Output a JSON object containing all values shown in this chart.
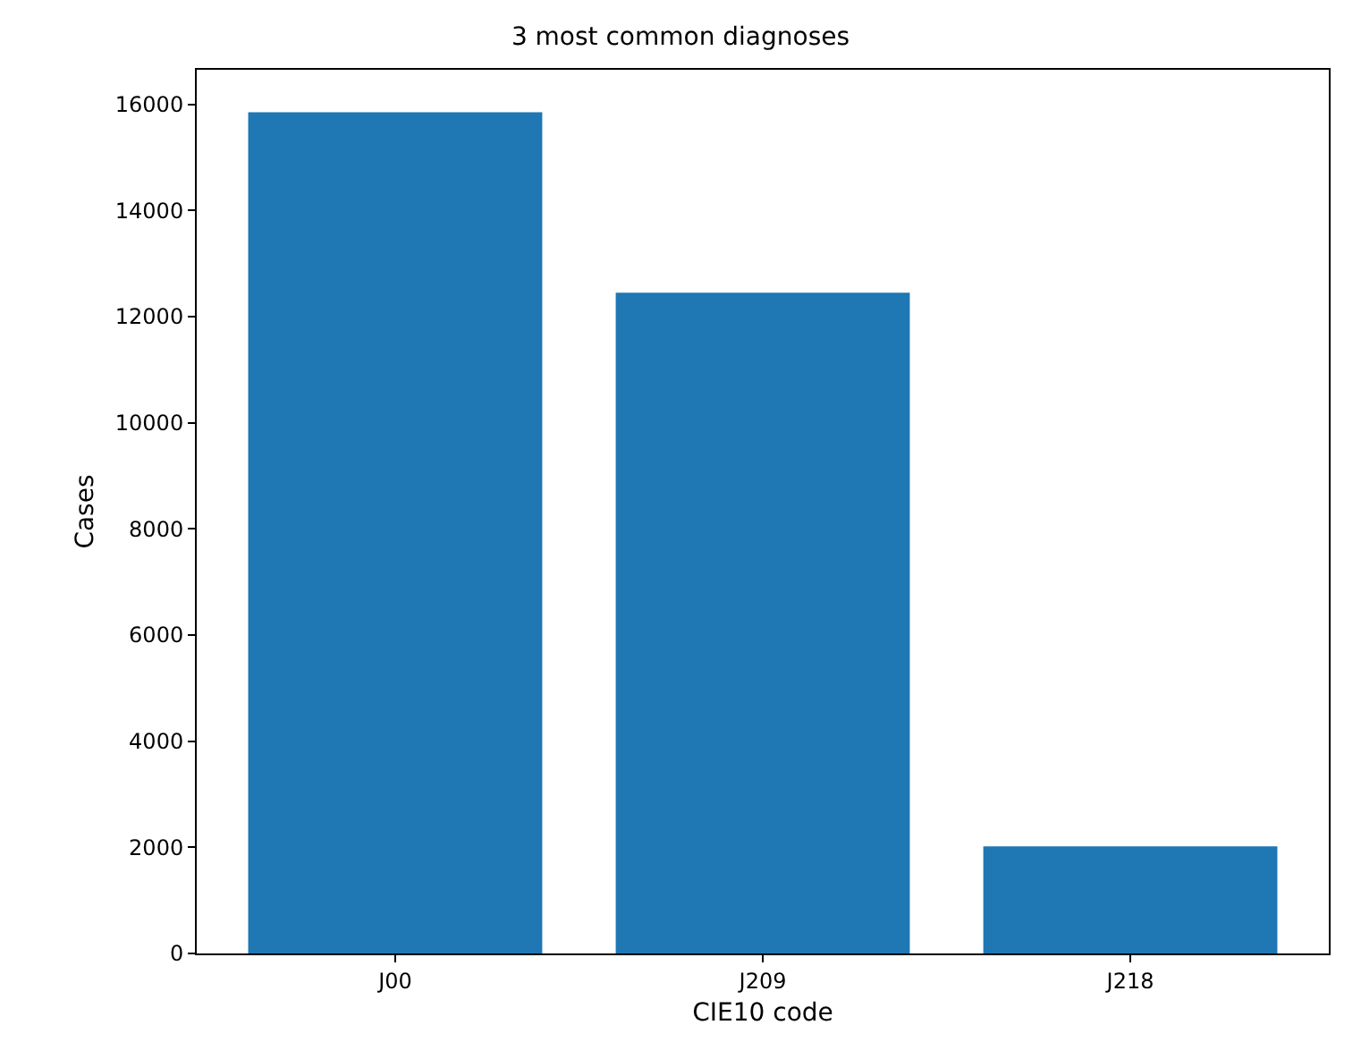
{
  "chart_data": {
    "type": "bar",
    "title": "3 most common diagnoses",
    "xlabel": "CIE10 code",
    "ylabel": "Cases",
    "categories": [
      "J00",
      "J209",
      "J218"
    ],
    "values": [
      15850,
      12450,
      2020
    ],
    "color": "#1f77b4",
    "ylim": [
      0,
      16650
    ],
    "yticks": [
      0,
      2000,
      4000,
      6000,
      8000,
      10000,
      12000,
      14000,
      16000
    ]
  }
}
